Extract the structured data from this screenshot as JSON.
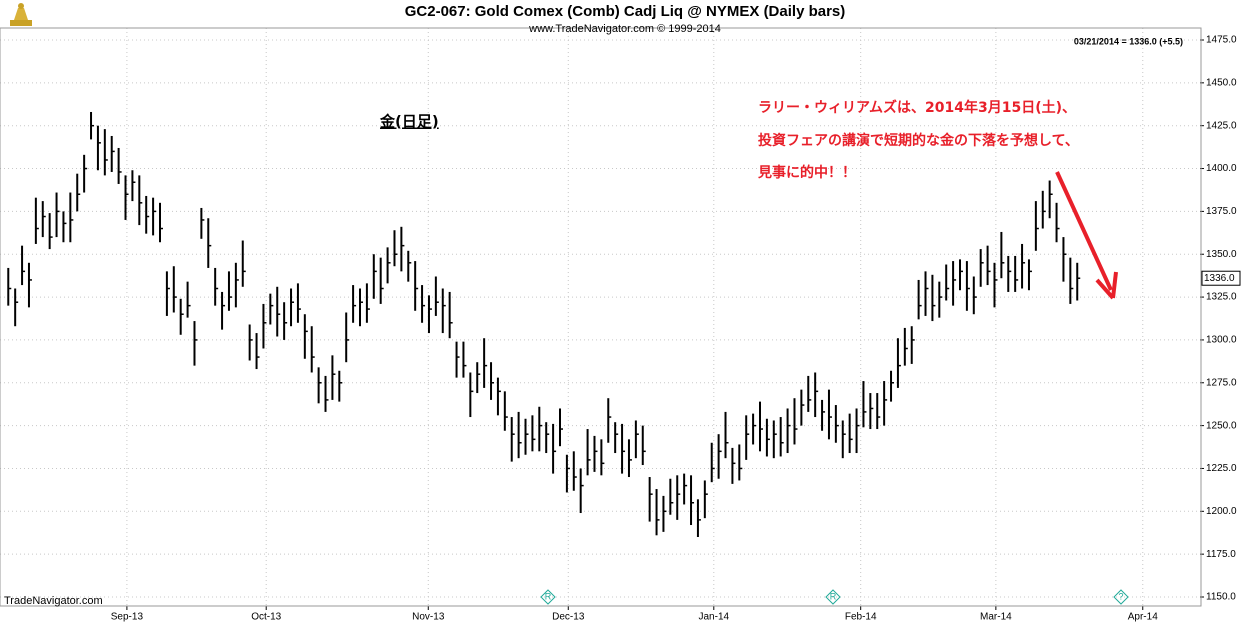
{
  "chart_data": {
    "type": "ohlc",
    "title": "GC2-067:  Gold Comex (Comb) Cadj Liq @ NYMEX  (Daily bars)",
    "subtitle": "www.TradeNavigator.com © 1999-2014",
    "status": "03/21/2014 = 1336.0 (+5.5)",
    "watermark": "TradeNavigator.com",
    "annotations": [
      "金(日足)",
      "ラリー・ウィリアムズは、2014年3月15日(土)、",
      "投資フェアの講演で短期的な金の下落を予想して、",
      "見事に的中！！"
    ],
    "last_price": {
      "value": 1336,
      "label": "1336.0"
    },
    "color": "#000000",
    "annotation_color": "#e8202a",
    "grid": true,
    "x": [
      0,
      1,
      2,
      3,
      4,
      5,
      6,
      7,
      8,
      9,
      10,
      11,
      12,
      13,
      14,
      15,
      16,
      17,
      18,
      19,
      20,
      21,
      22,
      23,
      24,
      25,
      26,
      27,
      28,
      29,
      30,
      31,
      32,
      33,
      34,
      35,
      36,
      37,
      38,
      39,
      40,
      41,
      42,
      43,
      44,
      45,
      46,
      47,
      48,
      49,
      50,
      51,
      52,
      53,
      54,
      55,
      56,
      57,
      58,
      59,
      60,
      61,
      62,
      63,
      64,
      65,
      66,
      67,
      68,
      69,
      70,
      71,
      72,
      73,
      74,
      75,
      76,
      77,
      78,
      79,
      80,
      81,
      82,
      83,
      84,
      85,
      86,
      87,
      88,
      89,
      90,
      91,
      92,
      93,
      94,
      95,
      96,
      97,
      98,
      99,
      100,
      101,
      102,
      103,
      104,
      105,
      106,
      107,
      108,
      109,
      110,
      111,
      112,
      113,
      114,
      115,
      116,
      117,
      118,
      119,
      120,
      121,
      122,
      123,
      124,
      125,
      126,
      127,
      128,
      129,
      130,
      131,
      132,
      133,
      134,
      135,
      136,
      137,
      138,
      139,
      140,
      141,
      142,
      143,
      144,
      145,
      146,
      147,
      148,
      149,
      150,
      151,
      152,
      153,
      154,
      155
    ],
    "high": [
      1342,
      1330,
      1355,
      1345,
      1383,
      1381,
      1374,
      1386,
      1375,
      1386,
      1397,
      1408,
      1433,
      1425,
      1423,
      1419,
      1412,
      1396,
      1399,
      1396,
      1384,
      1383,
      1380,
      1340,
      1343,
      1324,
      1334,
      1311,
      1377,
      1371,
      1342,
      1328,
      1340,
      1345,
      1358,
      1309,
      1304,
      1321,
      1327,
      1331,
      1322,
      1330,
      1333,
      1315,
      1308,
      1284,
      1279,
      1291,
      1282,
      1316,
      1332,
      1330,
      1333,
      1350,
      1348,
      1354,
      1364,
      1366,
      1352,
      1346,
      1332,
      1326,
      1337,
      1330,
      1328,
      1299,
      1299,
      1281,
      1287,
      1301,
      1287,
      1278,
      1270,
      1255,
      1258,
      1254,
      1256,
      1261,
      1252,
      1251,
      1260,
      1233,
      1235,
      1225,
      1248,
      1244,
      1242,
      1266,
      1252,
      1251,
      1242,
      1253,
      1250,
      1220,
      1213,
      1209,
      1219,
      1221,
      1222,
      1221,
      1207,
      1218,
      1240,
      1245,
      1258,
      1237,
      1239,
      1256,
      1257,
      1264,
      1254,
      1253,
      1255,
      1260,
      1266,
      1271,
      1279,
      1281,
      1265,
      1271,
      1262,
      1253,
      1257,
      1260,
      1276,
      1269,
      1269,
      1276,
      1282,
      1301,
      1307,
      1308,
      1335,
      1340,
      1338,
      1334,
      1344,
      1346,
      1347,
      1346,
      1337,
      1353,
      1355,
      1345,
      1363,
      1349,
      1349,
      1356,
      1347,
      1381,
      1387,
      1393,
      1380,
      1360,
      1348,
      1345
    ],
    "low": [
      1320,
      1308,
      1332,
      1319,
      1356,
      1360,
      1353,
      1360,
      1357,
      1357,
      1375,
      1386,
      1417,
      1399,
      1396,
      1398,
      1391,
      1370,
      1381,
      1367,
      1362,
      1361,
      1357,
      1314,
      1316,
      1303,
      1313,
      1285,
      1359,
      1342,
      1320,
      1306,
      1317,
      1319,
      1331,
      1288,
      1283,
      1295,
      1309,
      1302,
      1300,
      1308,
      1310,
      1289,
      1281,
      1263,
      1258,
      1265,
      1264,
      1287,
      1310,
      1308,
      1310,
      1324,
      1321,
      1333,
      1343,
      1340,
      1334,
      1317,
      1310,
      1304,
      1314,
      1304,
      1301,
      1278,
      1278,
      1255,
      1269,
      1272,
      1265,
      1256,
      1247,
      1229,
      1231,
      1233,
      1235,
      1235,
      1234,
      1222,
      1238,
      1211,
      1212,
      1199,
      1221,
      1223,
      1221,
      1240,
      1234,
      1222,
      1220,
      1231,
      1227,
      1194,
      1186,
      1188,
      1198,
      1195,
      1204,
      1192,
      1185,
      1196,
      1217,
      1219,
      1231,
      1216,
      1218,
      1230,
      1239,
      1235,
      1232,
      1231,
      1232,
      1234,
      1239,
      1250,
      1258,
      1255,
      1247,
      1242,
      1240,
      1231,
      1234,
      1234,
      1249,
      1248,
      1248,
      1250,
      1264,
      1272,
      1285,
      1286,
      1312,
      1314,
      1311,
      1313,
      1323,
      1320,
      1329,
      1317,
      1315,
      1331,
      1332,
      1319,
      1336,
      1328,
      1328,
      1330,
      1329,
      1352,
      1365,
      1371,
      1357,
      1334,
      1321,
      1323
    ],
    "close": [
      1330,
      1322,
      1340,
      1335,
      1365,
      1372,
      1360,
      1375,
      1368,
      1370,
      1385,
      1400,
      1425,
      1415,
      1405,
      1410,
      1398,
      1385,
      1392,
      1380,
      1372,
      1375,
      1365,
      1330,
      1325,
      1315,
      1320,
      1300,
      1370,
      1355,
      1330,
      1320,
      1325,
      1335,
      1340,
      1300,
      1290,
      1310,
      1320,
      1315,
      1310,
      1322,
      1318,
      1305,
      1290,
      1275,
      1265,
      1280,
      1275,
      1300,
      1320,
      1322,
      1318,
      1340,
      1330,
      1345,
      1350,
      1355,
      1345,
      1330,
      1320,
      1318,
      1322,
      1320,
      1310,
      1290,
      1285,
      1270,
      1280,
      1285,
      1275,
      1270,
      1255,
      1245,
      1240,
      1245,
      1242,
      1250,
      1245,
      1235,
      1248,
      1225,
      1220,
      1215,
      1230,
      1235,
      1228,
      1255,
      1245,
      1235,
      1230,
      1245,
      1235,
      1210,
      1195,
      1200,
      1205,
      1210,
      1215,
      1205,
      1195,
      1210,
      1225,
      1235,
      1240,
      1228,
      1225,
      1245,
      1250,
      1248,
      1242,
      1245,
      1240,
      1250,
      1248,
      1262,
      1265,
      1270,
      1258,
      1255,
      1250,
      1245,
      1242,
      1250,
      1258,
      1260,
      1255,
      1265,
      1275,
      1285,
      1295,
      1300,
      1320,
      1330,
      1320,
      1325,
      1330,
      1335,
      1340,
      1330,
      1325,
      1345,
      1340,
      1335,
      1345,
      1340,
      1335,
      1345,
      1340,
      1365,
      1375,
      1385,
      1365,
      1350,
      1330,
      1336
    ],
    "xlim": [
      -1.2,
      172.8
    ],
    "xticks": [
      {
        "value": 17.2,
        "label": "Sep-13"
      },
      {
        "value": 37.4,
        "label": "Oct-13"
      },
      {
        "value": 60.9,
        "label": "Nov-13"
      },
      {
        "value": 81.2,
        "label": "Dec-13"
      },
      {
        "value": 102.3,
        "label": "Jan-14"
      },
      {
        "value": 123.6,
        "label": "Feb-14"
      },
      {
        "value": 143.2,
        "label": "Mar-14"
      },
      {
        "value": 164.5,
        "label": "Apr-14"
      }
    ],
    "ylim": [
      1150,
      1475
    ],
    "yticks": [
      {
        "value": 1150,
        "label": "1150.0"
      },
      {
        "value": 1175,
        "label": "1175.0"
      },
      {
        "value": 1200,
        "label": "1200.0"
      },
      {
        "value": 1225,
        "label": "1225.0"
      },
      {
        "value": 1250,
        "label": "1250.0"
      },
      {
        "value": 1275,
        "label": "1275.0"
      },
      {
        "value": 1300,
        "label": "1300.0"
      },
      {
        "value": 1325,
        "label": "1325.0"
      },
      {
        "value": 1350,
        "label": "1350.0"
      },
      {
        "value": 1375,
        "label": "1375.0"
      },
      {
        "value": 1400,
        "label": "1400.0"
      },
      {
        "value": 1425,
        "label": "1425.0"
      },
      {
        "value": 1450,
        "label": "1450.0"
      },
      {
        "value": 1475,
        "label": "1475.0"
      }
    ]
  }
}
